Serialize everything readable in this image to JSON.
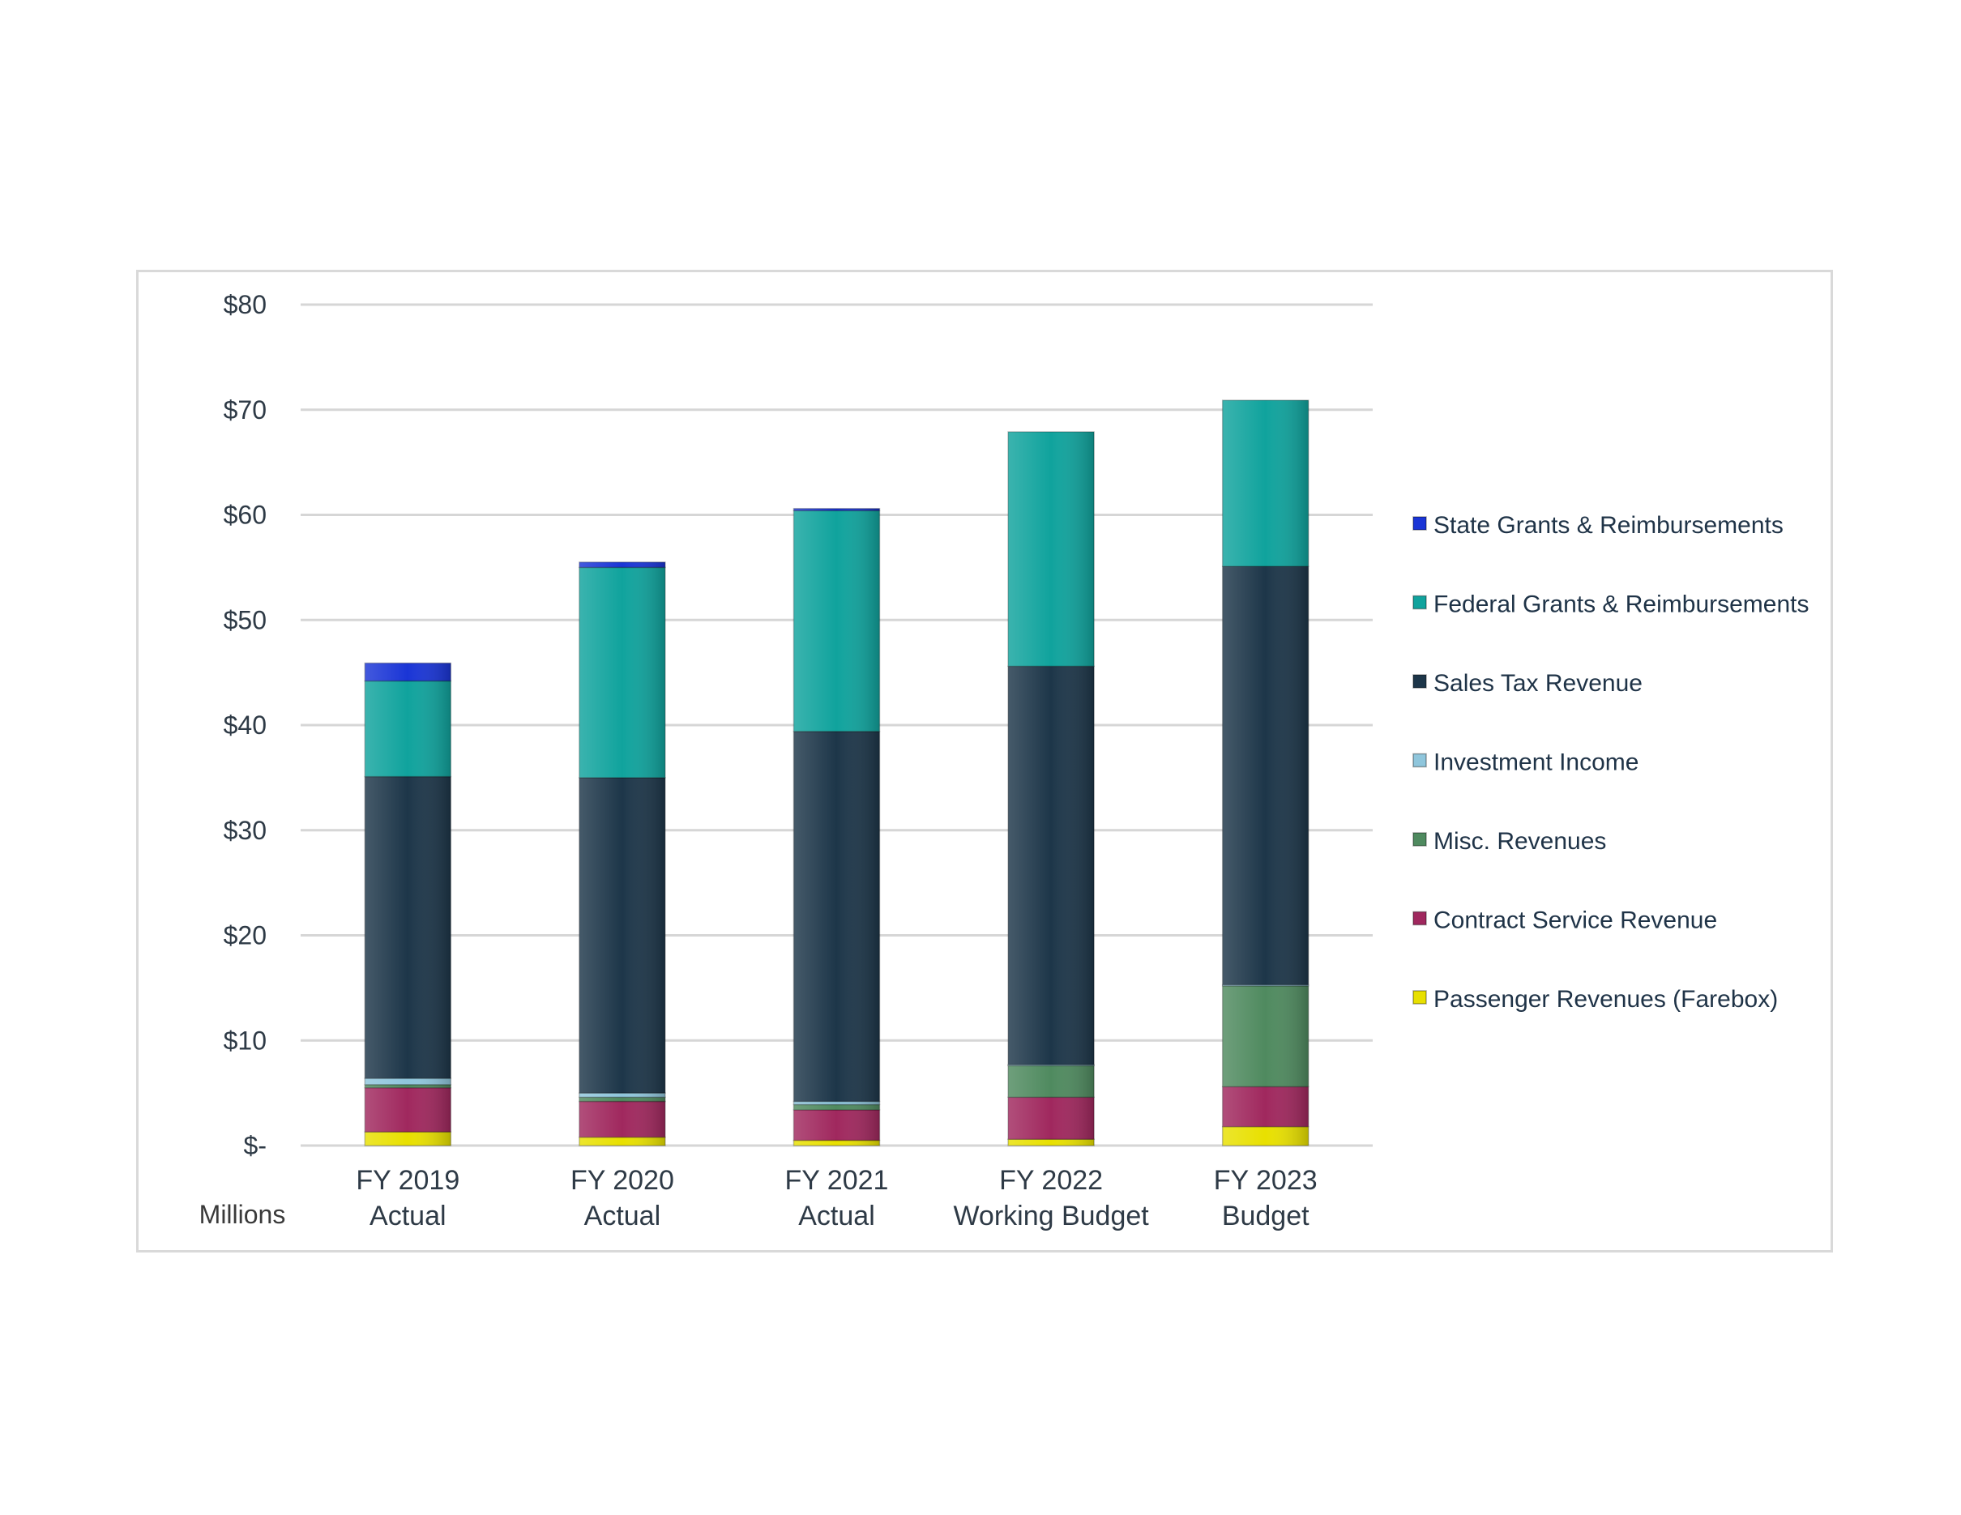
{
  "chart_data": {
    "type": "bar",
    "stacked": true,
    "title": "",
    "xlabel": "",
    "ylabel": "",
    "units_label": "Millions",
    "ylim": [
      0,
      80
    ],
    "yticks": [
      0,
      10,
      20,
      30,
      40,
      50,
      60,
      70,
      80
    ],
    "ytick_labels": [
      "$-",
      "$10",
      "$20",
      "$30",
      "$40",
      "$50",
      "$60",
      "$70",
      "$80"
    ],
    "categories": [
      [
        "FY 2019",
        "Actual"
      ],
      [
        "FY 2020",
        "Actual"
      ],
      [
        "FY 2021",
        "Actual"
      ],
      [
        "FY 2022",
        "Working Budget"
      ],
      [
        "FY 2023",
        "Budget"
      ]
    ],
    "legend_position": "right",
    "grid": true,
    "series": [
      {
        "name": "Passenger Revenues (Farebox)",
        "color": "#e8e000",
        "values": [
          1.3,
          0.8,
          0.5,
          0.6,
          1.8
        ]
      },
      {
        "name": "Contract Service Revenue",
        "color": "#a0285e",
        "values": [
          4.2,
          3.4,
          2.9,
          4.0,
          3.8
        ]
      },
      {
        "name": "Misc. Revenues",
        "color": "#4f8a5f",
        "values": [
          0.3,
          0.4,
          0.5,
          3.0,
          9.6
        ]
      },
      {
        "name": "Investment Income",
        "color": "#8fc6dc",
        "values": [
          0.6,
          0.4,
          0.3,
          0.1,
          0.1
        ]
      },
      {
        "name": "Sales Tax Revenue",
        "color": "#1d3649",
        "values": [
          28.7,
          30.0,
          35.2,
          37.9,
          39.8
        ]
      },
      {
        "name": "Federal Grants & Reimbursements",
        "color": "#10a39d",
        "values": [
          9.1,
          20.0,
          21.0,
          22.3,
          15.8
        ]
      },
      {
        "name": "State Grants & Reimbursements",
        "color": "#1a35d6",
        "values": [
          1.7,
          0.5,
          0.2,
          0.0,
          0.0
        ]
      }
    ]
  }
}
